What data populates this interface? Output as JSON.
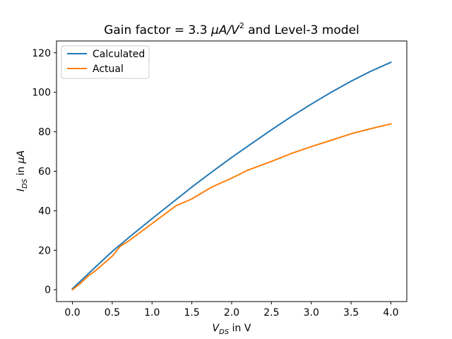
{
  "chart_data": {
    "type": "line",
    "title": {
      "prefix": "Gain factor = 3.3 ",
      "mu": "μ",
      "unit_a": "A/V",
      "exp": "2",
      "suffix": " and Level-3 model"
    },
    "xlabel": {
      "main": "V",
      "sub": "DS",
      "rest": " in V"
    },
    "ylabel": {
      "main": "I",
      "sub": "DS",
      "rest": " in ",
      "mu": "μ",
      "unit": "A"
    },
    "xlim": [
      -0.2,
      4.2
    ],
    "ylim": [
      -6,
      126
    ],
    "xticks": [
      0.0,
      0.5,
      1.0,
      1.5,
      2.0,
      2.5,
      3.0,
      3.5,
      4.0
    ],
    "xtick_labels": [
      "0.0",
      "0.5",
      "1.0",
      "1.5",
      "2.0",
      "2.5",
      "3.0",
      "3.5",
      "4.0"
    ],
    "yticks": [
      0,
      20,
      40,
      60,
      80,
      100,
      120
    ],
    "ytick_labels": [
      "0",
      "20",
      "40",
      "60",
      "80",
      "100",
      "120"
    ],
    "grid": false,
    "legend_position": "upper-left",
    "series": [
      {
        "name": "Calculated",
        "color": "#1f77b4",
        "x": [
          0.0,
          0.25,
          0.5,
          0.75,
          1.0,
          1.25,
          1.5,
          1.75,
          2.0,
          2.25,
          2.5,
          2.75,
          3.0,
          3.25,
          3.5,
          3.75,
          4.0
        ],
        "y": [
          0.5,
          10,
          19.4,
          27.8,
          36,
          44,
          52,
          59.6,
          67,
          74,
          81,
          87.7,
          94,
          100,
          105.6,
          110.7,
          115.2
        ]
      },
      {
        "name": "Actual",
        "color": "#ff7f0e",
        "x": [
          0.0,
          0.1,
          0.2,
          0.3,
          0.4,
          0.5,
          0.55,
          0.6,
          0.7,
          0.8,
          0.9,
          1.0,
          1.1,
          1.2,
          1.25,
          1.3,
          1.5,
          1.75,
          2.0,
          2.2,
          2.5,
          2.75,
          3.0,
          3.25,
          3.5,
          3.75,
          4.0
        ],
        "y": [
          0,
          3.2,
          7,
          10,
          13.5,
          17,
          19.5,
          22,
          24.5,
          27.5,
          30.5,
          33.5,
          36.5,
          39.5,
          41,
          42.5,
          46,
          52,
          56.5,
          60.5,
          65,
          69,
          72.5,
          75.7,
          79,
          81.6,
          84
        ]
      }
    ]
  }
}
